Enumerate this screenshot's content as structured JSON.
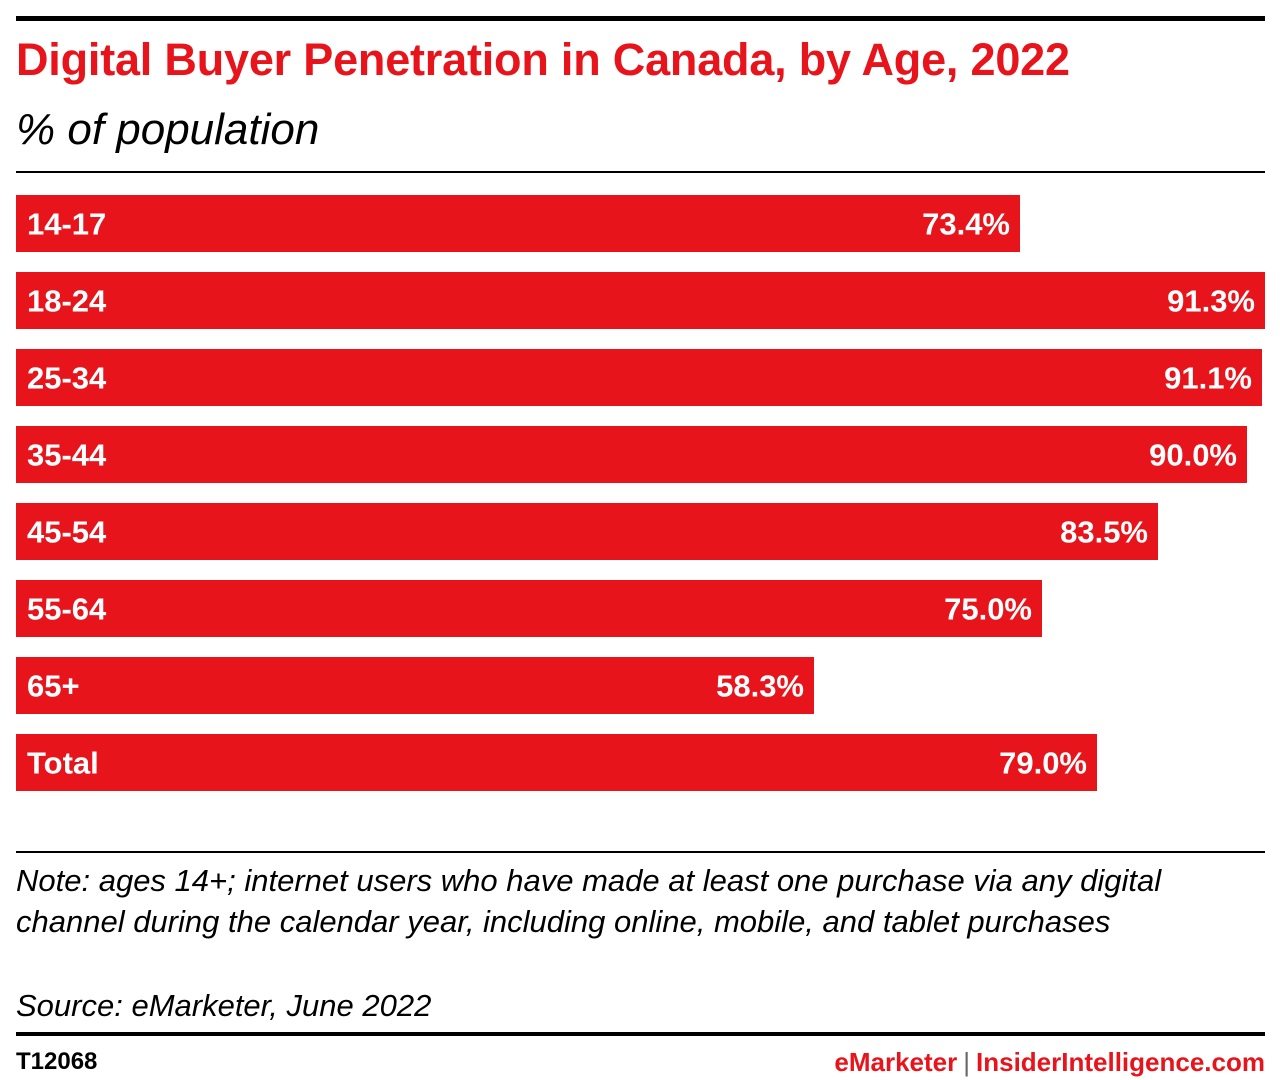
{
  "colors": {
    "accent": "#e8141c",
    "bar": "#e8141c",
    "text": "#000000",
    "bar_label": "#ffffff"
  },
  "chart_data": {
    "type": "bar",
    "orientation": "horizontal",
    "title": "Digital Buyer Penetration in Canada, by Age, 2022",
    "subtitle": "% of population",
    "categories": [
      "14-17",
      "18-24",
      "25-34",
      "35-44",
      "45-54",
      "55-64",
      "65+",
      "Total"
    ],
    "values": [
      73.4,
      91.3,
      91.1,
      90.0,
      83.5,
      75.0,
      58.3,
      79.0
    ],
    "value_labels": [
      "73.4%",
      "91.3%",
      "91.1%",
      "90.0%",
      "83.5%",
      "75.0%",
      "58.3%",
      "79.0%"
    ],
    "xlim": [
      0,
      91.3
    ],
    "grid": false,
    "legend": "none"
  },
  "footer": {
    "note": "Note: ages 14+; internet users who have made at least one purchase via any digital channel during the calendar year, including online, mobile, and tablet purchases",
    "source": "Source: eMarketer, June 2022",
    "chart_id": "T12068",
    "brand_primary": "eMarketer",
    "brand_separator": "|",
    "brand_secondary": "InsiderIntelligence.com"
  }
}
